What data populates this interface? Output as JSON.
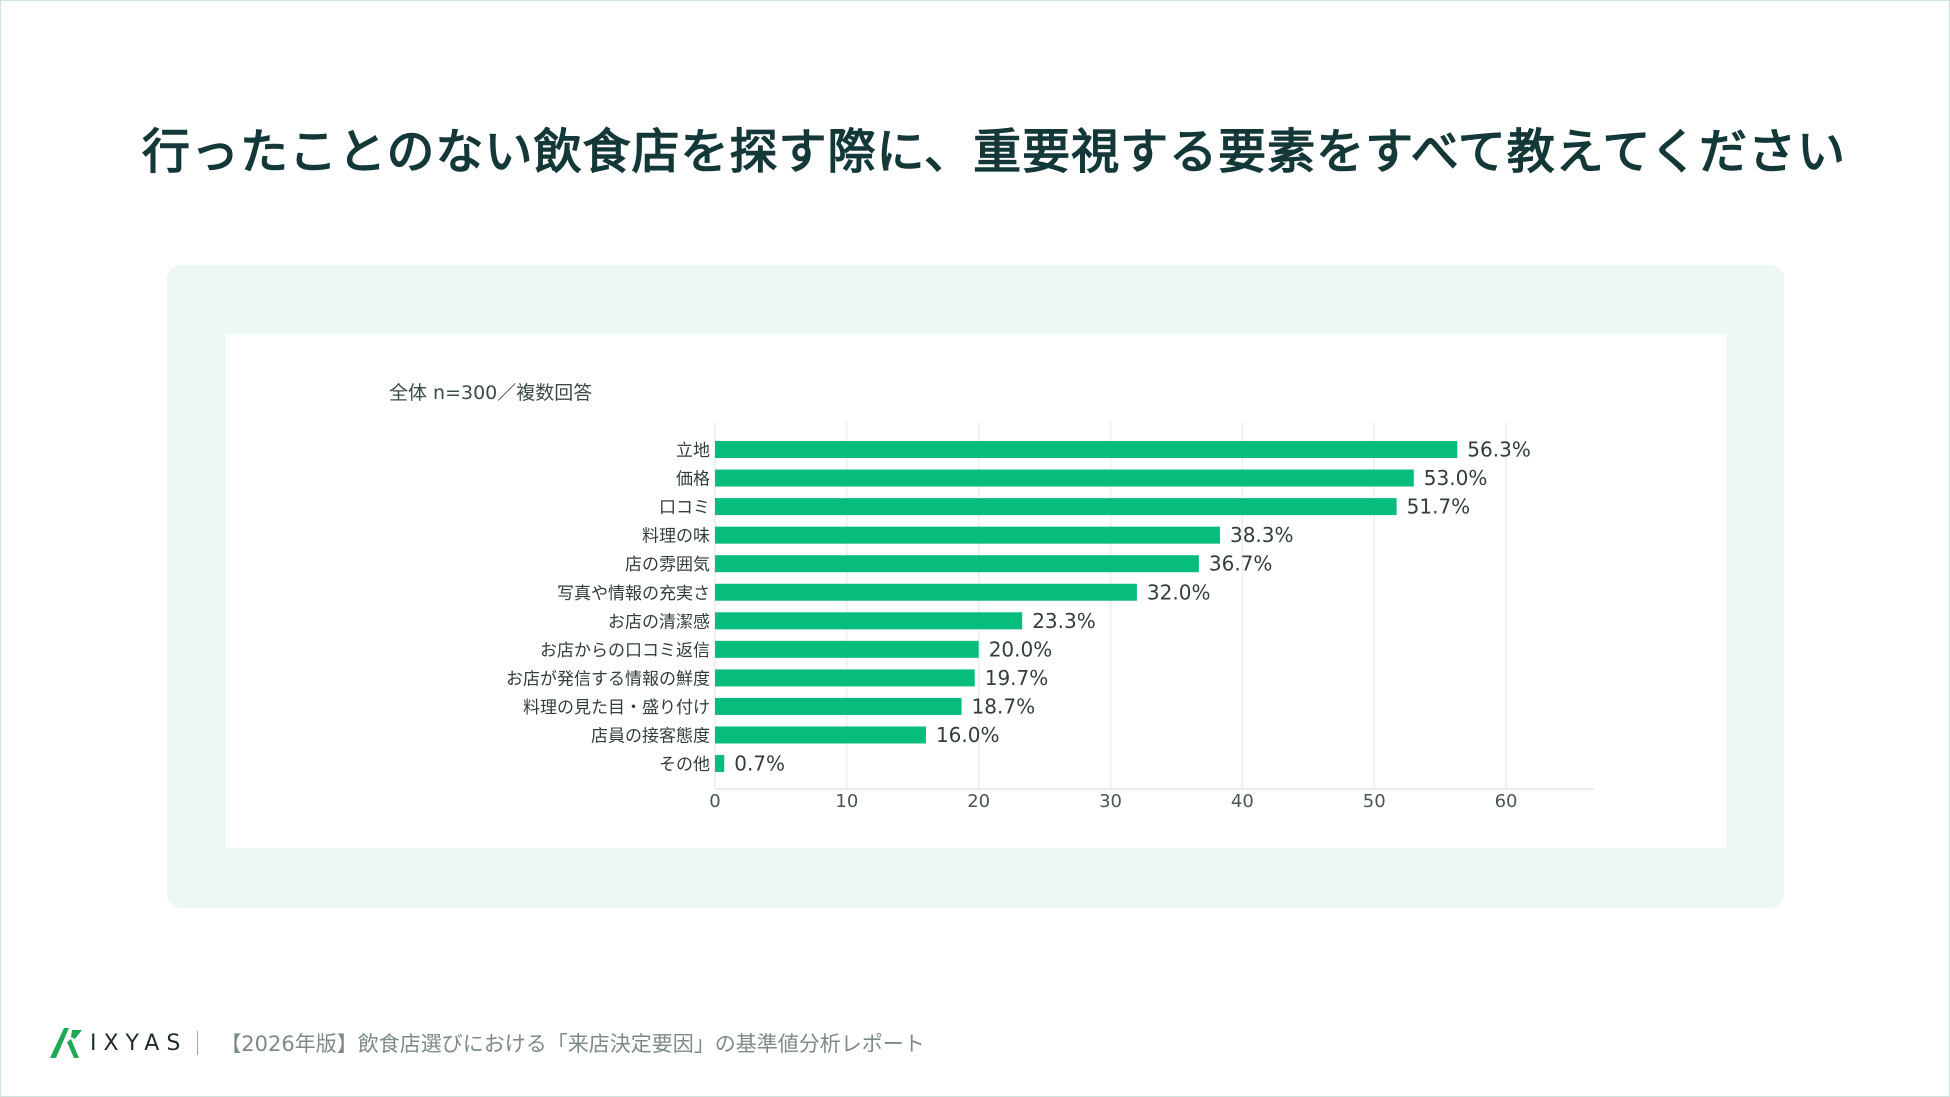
{
  "title": "行ったことのない飲食店を探す際に、重要視する要素をすべて教えてください",
  "chart_note": "全体 n=300／複数回答",
  "chart_data": {
    "type": "bar",
    "orientation": "horizontal",
    "categories": [
      "立地",
      "価格",
      "口コミ",
      "料理の味",
      "店の雰囲気",
      "写真や情報の充実さ",
      "お店の清潔感",
      "お店からの口コミ返信",
      "お店が発信する情報の鮮度",
      "料理の見た目・盛り付け",
      "店員の接客態度",
      "その他"
    ],
    "values": [
      56.3,
      53.0,
      51.7,
      38.3,
      36.7,
      32.0,
      23.3,
      20.0,
      19.7,
      18.7,
      16.0,
      0.7
    ],
    "value_labels": [
      "56.3%",
      "53.0%",
      "51.7%",
      "38.3%",
      "36.7%",
      "32.0%",
      "23.3%",
      "20.0%",
      "19.7%",
      "18.7%",
      "16.0%",
      "0.7%"
    ],
    "xlim": [
      0,
      65
    ],
    "xticks": [
      0,
      10,
      20,
      30,
      40,
      50,
      60
    ],
    "grid": true,
    "bar_color": "#06bd7c"
  },
  "footer": {
    "brand": "IXYAS",
    "text": "【2026年版】飲食店選びにおける「来店決定要因」の基準値分析レポート"
  },
  "colors": {
    "title": "#143838",
    "panel_bg": "#ecf7f6",
    "logo_green": "#1fa856"
  }
}
